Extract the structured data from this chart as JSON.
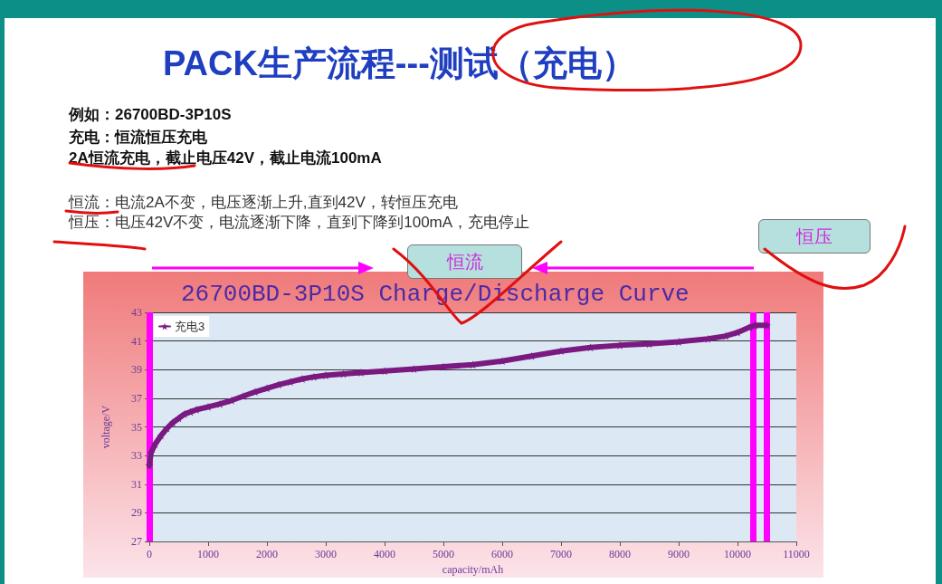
{
  "chart_data": {
    "type": "line",
    "title": "PACK生产流程---测试（充电）",
    "subtitle": "26700BD-3P10S Charge/Discharge Curve",
    "xlabel": "capacity/mAh",
    "ylabel": "voltage/V",
    "annotations": [
      "例如：26700BD-3P10S",
      "充电：恒流恒压充电",
      "2A恒流充电，截止电压42V，截止电流100mA",
      "恒流：电流2A不变，电压逐渐上升,直到42V，转恒压充电",
      "恒压：电压42V不变，电流逐渐下降，直到下降到100mA，充电停止",
      "恒流",
      "恒压"
    ],
    "series": [
      {
        "name": "充电3",
        "color": "#7a1a80",
        "x": [
          0,
          30,
          100,
          200,
          300,
          400,
          500,
          600,
          700,
          800,
          1000,
          1200,
          1400,
          1600,
          1800,
          2000,
          2200,
          2400,
          2600,
          2800,
          3000,
          3300,
          3600,
          4000,
          4500,
          5000,
          5500,
          6000,
          6500,
          7000,
          7500,
          8000,
          8500,
          9000,
          9500,
          9800,
          10000,
          10200,
          10300,
          10500
        ],
        "values": [
          32.3,
          33.2,
          33.8,
          34.4,
          34.9,
          35.3,
          35.6,
          35.9,
          36.05,
          36.2,
          36.4,
          36.6,
          36.85,
          37.15,
          37.45,
          37.7,
          37.95,
          38.15,
          38.35,
          38.5,
          38.6,
          38.7,
          38.8,
          38.9,
          39.05,
          39.2,
          39.35,
          39.6,
          39.95,
          40.3,
          40.55,
          40.7,
          40.8,
          40.95,
          41.15,
          41.35,
          41.6,
          41.95,
          42.1,
          42.1
        ]
      }
    ],
    "xlim": [
      0,
      11000
    ],
    "xticks": [
      0,
      1000,
      2000,
      3000,
      4000,
      5000,
      6000,
      7000,
      8000,
      9000,
      10000,
      11000
    ],
    "ylim": [
      27,
      43
    ],
    "yticks": [
      27,
      29,
      31,
      33,
      35,
      37,
      39,
      41,
      43
    ],
    "ref_lines": [
      {
        "axis": "x",
        "value": 0,
        "color": "#ff00ff"
      },
      {
        "axis": "x",
        "value": 10270,
        "color": "#ff00ff"
      },
      {
        "axis": "x",
        "value": 10500,
        "color": "#ff00ff"
      }
    ],
    "grid": "y",
    "legend": "top left",
    "marker": "star",
    "line_style": "solid"
  }
}
